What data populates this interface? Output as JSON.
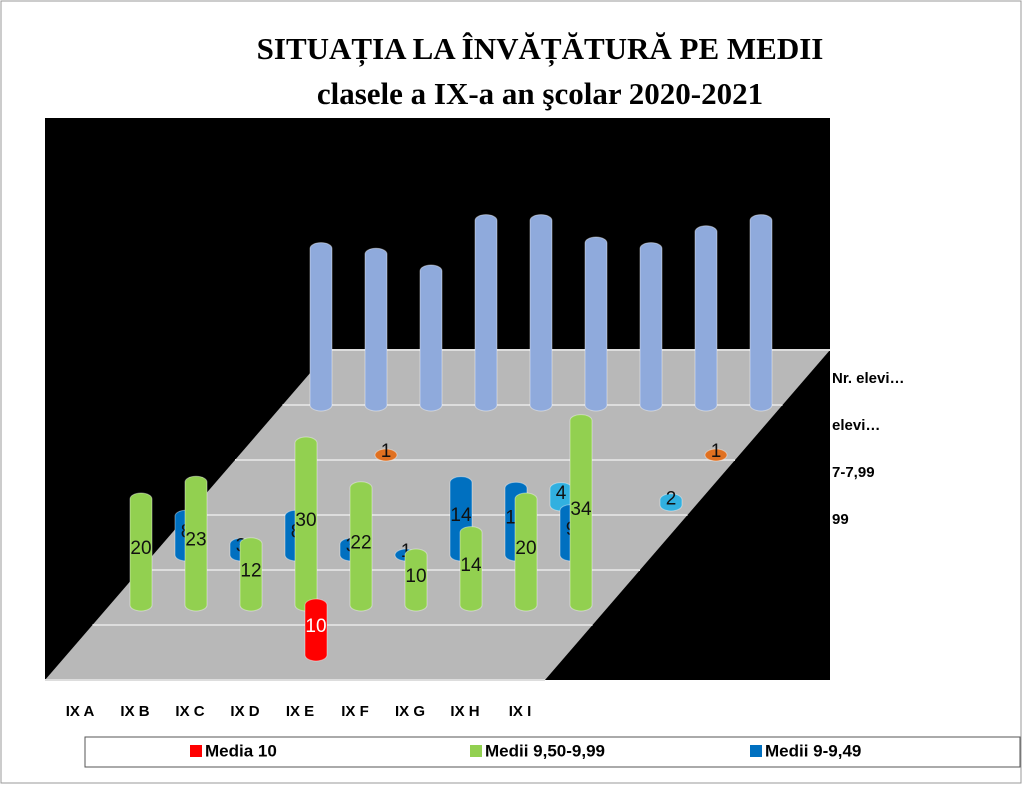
{
  "chart_data": {
    "type": "bar3d",
    "title": "SITUAȚIA LA ÎNVĂȚĂTURĂ PE MEDII",
    "subtitle": "clasele a IX-a an şcolar 2020-2021",
    "categories": [
      "IX A",
      "IX B",
      "IX C",
      "IX D",
      "IX E",
      "IX F",
      "IX G",
      "IX H",
      "IX I"
    ],
    "series": [
      {
        "name": "Media 10",
        "color": "#ff0000",
        "values": [
          null,
          null,
          null,
          null,
          10,
          null,
          null,
          null,
          null
        ]
      },
      {
        "name": "Medii 9,50-9,99",
        "color": "#92d050",
        "values": [
          20,
          23,
          12,
          30,
          22,
          10,
          14,
          20,
          34
        ]
      },
      {
        "name": "Medii 9-9,49",
        "color": "#0070c0",
        "values": [
          8,
          3,
          8,
          3,
          1,
          14,
          13,
          9,
          null
        ]
      }
    ],
    "depth_series": [
      {
        "name": "7-7,99",
        "color": "#31b0e0",
        "values": [
          null,
          null,
          null,
          null,
          null,
          null,
          4,
          null,
          2
        ]
      },
      {
        "name": "elevi…",
        "color": "#e07020",
        "values": [
          null,
          null,
          1,
          null,
          null,
          null,
          null,
          null,
          1
        ]
      },
      {
        "name": "Nr. elevi…",
        "color": "#8faadc",
        "values": [
          29,
          28,
          25,
          34,
          34,
          30,
          29,
          32,
          34
        ]
      }
    ],
    "depth_labels": [
      "99",
      "7-7,99",
      "elevi…",
      "Nr. elevi…"
    ]
  }
}
